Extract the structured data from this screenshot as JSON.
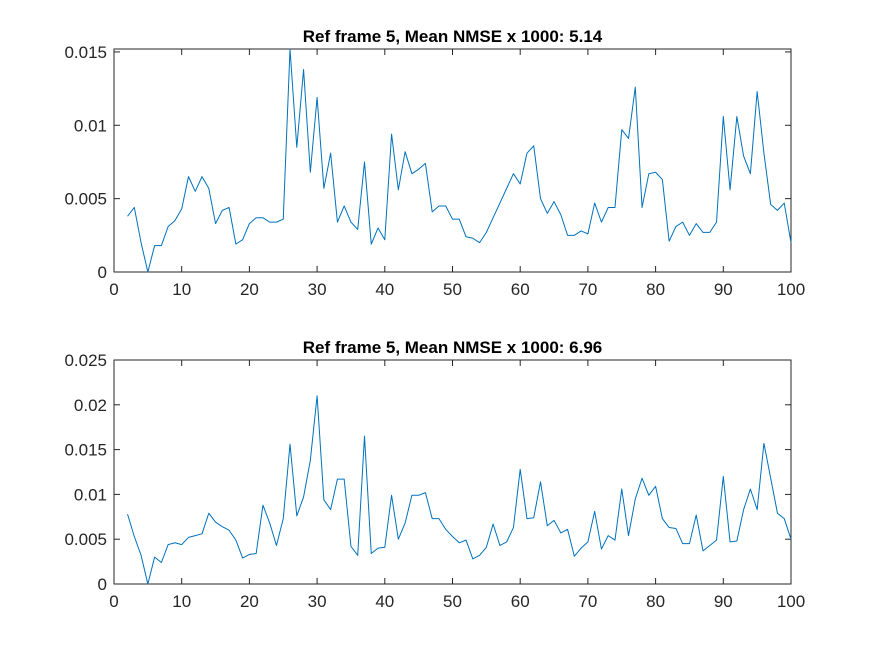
{
  "chart_data": [
    {
      "type": "line",
      "title": "Ref frame 5, Mean NMSE x 1000: 5.14",
      "xlim": [
        0,
        100
      ],
      "ylim": [
        0,
        0.0152
      ],
      "xticks": [
        0,
        10,
        20,
        30,
        40,
        50,
        60,
        70,
        80,
        90,
        100
      ],
      "xtick_labels": [
        "0",
        "10",
        "20",
        "30",
        "40",
        "50",
        "60",
        "70",
        "80",
        "90",
        "100"
      ],
      "yticks": [
        0,
        0.005,
        0.01,
        0.015
      ],
      "ytick_labels": [
        "0",
        "0.005",
        "0.01",
        "0.015"
      ],
      "grid": false,
      "color": "#0072BD",
      "series": [
        {
          "x": [
            2,
            3,
            4,
            5,
            6,
            7,
            8,
            9,
            10,
            11,
            12,
            13,
            14,
            15,
            16,
            17,
            18,
            19,
            20,
            21,
            22,
            23,
            24,
            25,
            26,
            27,
            28,
            29,
            30,
            31,
            32,
            33,
            34,
            35,
            36,
            37,
            38,
            39,
            40,
            41,
            42,
            43,
            44,
            45,
            46,
            47,
            48,
            49,
            50,
            51,
            52,
            53,
            54,
            55,
            56,
            57,
            58,
            59,
            60,
            61,
            62,
            63,
            64,
            65,
            66,
            67,
            68,
            69,
            70,
            71,
            72,
            73,
            74,
            75,
            76,
            77,
            78,
            79,
            80,
            81,
            82,
            83,
            84,
            85,
            86,
            87,
            88,
            89,
            90,
            91,
            92,
            93,
            94,
            95,
            96,
            97,
            98,
            99,
            100
          ],
          "values": [
            0.0038,
            0.0044,
            0.002,
            0.0,
            0.0018,
            0.0018,
            0.0031,
            0.0035,
            0.0043,
            0.0065,
            0.0055,
            0.0065,
            0.0057,
            0.0033,
            0.0042,
            0.0044,
            0.0019,
            0.0022,
            0.0033,
            0.0037,
            0.0037,
            0.0034,
            0.0034,
            0.0036,
            0.0152,
            0.0085,
            0.0138,
            0.0068,
            0.0119,
            0.0057,
            0.0081,
            0.0034,
            0.0045,
            0.0034,
            0.0029,
            0.0075,
            0.0019,
            0.003,
            0.0022,
            0.0094,
            0.0056,
            0.0082,
            0.0067,
            0.007,
            0.0074,
            0.0041,
            0.0045,
            0.0045,
            0.0036,
            0.0036,
            0.0024,
            0.0023,
            0.002,
            0.0027,
            0.0037,
            0.0047,
            0.0057,
            0.0067,
            0.006,
            0.0081,
            0.0086,
            0.005,
            0.004,
            0.0048,
            0.0039,
            0.0025,
            0.0025,
            0.0028,
            0.0026,
            0.0047,
            0.0034,
            0.0044,
            0.0044,
            0.0097,
            0.0091,
            0.0126,
            0.0044,
            0.0067,
            0.0068,
            0.0063,
            0.0021,
            0.0031,
            0.0034,
            0.0025,
            0.0033,
            0.0027,
            0.0027,
            0.0034,
            0.0106,
            0.0056,
            0.0106,
            0.0079,
            0.0067,
            0.0123,
            0.0081,
            0.0046,
            0.0042,
            0.0047,
            0.002
          ]
        }
      ]
    },
    {
      "type": "line",
      "title": "Ref frame 5, Mean NMSE x 1000: 6.96",
      "xlim": [
        0,
        100
      ],
      "ylim": [
        0,
        0.025
      ],
      "xticks": [
        0,
        10,
        20,
        30,
        40,
        50,
        60,
        70,
        80,
        90,
        100
      ],
      "xtick_labels": [
        "0",
        "10",
        "20",
        "30",
        "40",
        "50",
        "60",
        "70",
        "80",
        "90",
        "100"
      ],
      "yticks": [
        0,
        0.005,
        0.01,
        0.015,
        0.02,
        0.025
      ],
      "ytick_labels": [
        "0",
        "0.005",
        "0.01",
        "0.015",
        "0.02",
        "0.025"
      ],
      "grid": false,
      "color": "#0072BD",
      "series": [
        {
          "x": [
            2,
            3,
            4,
            5,
            6,
            7,
            8,
            9,
            10,
            11,
            12,
            13,
            14,
            15,
            16,
            17,
            18,
            19,
            20,
            21,
            22,
            23,
            24,
            25,
            26,
            27,
            28,
            29,
            30,
            31,
            32,
            33,
            34,
            35,
            36,
            37,
            38,
            39,
            40,
            41,
            42,
            43,
            44,
            45,
            46,
            47,
            48,
            49,
            50,
            51,
            52,
            53,
            54,
            55,
            56,
            57,
            58,
            59,
            60,
            61,
            62,
            63,
            64,
            65,
            66,
            67,
            68,
            69,
            70,
            71,
            72,
            73,
            74,
            75,
            76,
            77,
            78,
            79,
            80,
            81,
            82,
            83,
            84,
            85,
            86,
            87,
            88,
            89,
            90,
            91,
            92,
            93,
            94,
            95,
            96,
            97,
            98,
            99,
            100
          ],
          "values": [
            0.0078,
            0.0053,
            0.0032,
            0.0,
            0.003,
            0.0024,
            0.0044,
            0.0046,
            0.0044,
            0.0052,
            0.0054,
            0.0056,
            0.0079,
            0.0069,
            0.0064,
            0.006,
            0.0049,
            0.0029,
            0.0033,
            0.0034,
            0.0088,
            0.0068,
            0.0043,
            0.0073,
            0.0156,
            0.0076,
            0.0097,
            0.0138,
            0.021,
            0.0094,
            0.0083,
            0.0117,
            0.0117,
            0.0042,
            0.0032,
            0.0165,
            0.0034,
            0.004,
            0.0041,
            0.0099,
            0.005,
            0.0068,
            0.0099,
            0.0099,
            0.0102,
            0.0073,
            0.0073,
            0.0061,
            0.0053,
            0.0046,
            0.0049,
            0.0028,
            0.0032,
            0.0041,
            0.0067,
            0.0043,
            0.0047,
            0.0063,
            0.0128,
            0.0073,
            0.0074,
            0.0114,
            0.0065,
            0.0071,
            0.0057,
            0.0061,
            0.0031,
            0.004,
            0.0047,
            0.0081,
            0.0039,
            0.0054,
            0.0049,
            0.0106,
            0.0054,
            0.0095,
            0.0118,
            0.0099,
            0.0109,
            0.0073,
            0.0063,
            0.0062,
            0.0045,
            0.0045,
            0.0077,
            0.0037,
            0.0043,
            0.0049,
            0.012,
            0.0047,
            0.0048,
            0.0083,
            0.0106,
            0.0083,
            0.0157,
            0.0118,
            0.0079,
            0.0073,
            0.005
          ]
        }
      ]
    }
  ]
}
